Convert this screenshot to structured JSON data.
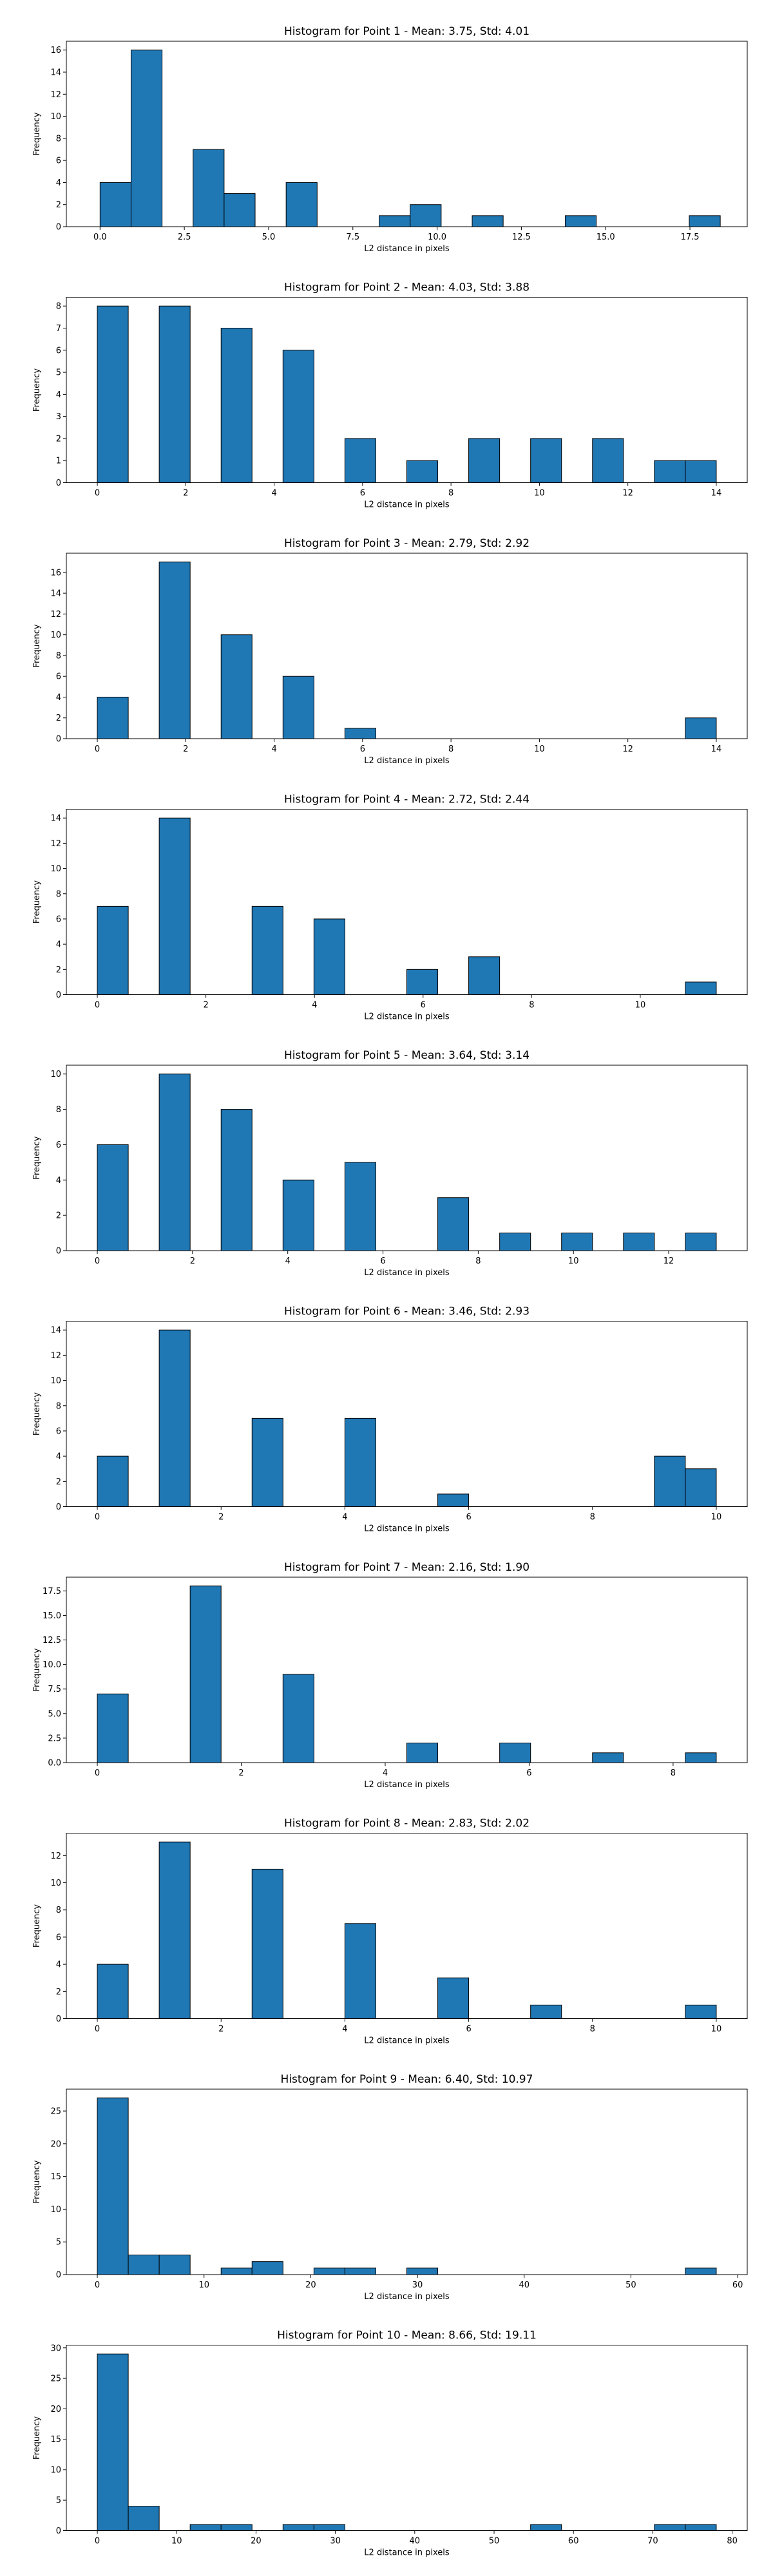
{
  "chart_data": [
    {
      "type": "bar",
      "title": "Histogram for Point 1 - Mean: 3.75, Std: 4.01",
      "xlabel": "L2 distance in pixels",
      "ylabel": "Frequency",
      "bar_color": "#1f77b4",
      "xlim": [
        -1.0,
        19.2
      ],
      "ylim": [
        0,
        16.8
      ],
      "bin_edges": [
        0,
        0.92,
        1.84,
        2.76,
        3.68,
        4.6,
        5.52,
        6.44,
        7.36,
        8.28,
        9.2,
        10.12,
        11.04,
        11.96,
        12.88,
        13.8,
        14.72,
        15.64,
        16.56,
        17.48,
        18.4
      ],
      "values": [
        4,
        16,
        0,
        7,
        3,
        0,
        4,
        0,
        0,
        1,
        2,
        0,
        1,
        0,
        0,
        1,
        0,
        0,
        0,
        1
      ],
      "xticks": [
        0,
        2.5,
        5,
        7.5,
        10,
        12.5,
        15,
        17.5
      ],
      "xtick_labels": [
        "0.0",
        "2.5",
        "5.0",
        "7.5",
        "10.0",
        "12.5",
        "15.0",
        "17.5"
      ],
      "yticks": [
        0,
        2,
        4,
        6,
        8,
        10,
        12,
        14,
        16
      ],
      "ytick_labels": [
        "0",
        "2",
        "4",
        "6",
        "8",
        "10",
        "12",
        "14",
        "16"
      ]
    },
    {
      "type": "bar",
      "title": "Histogram for Point 2 - Mean: 4.03, Std: 3.88",
      "xlabel": "L2 distance in pixels",
      "ylabel": "Frequency",
      "bar_color": "#1f77b4",
      "xlim": [
        -0.7,
        14.7
      ],
      "ylim": [
        0,
        8.4
      ],
      "bin_edges": [
        0,
        0.7,
        1.4,
        2.1,
        2.8,
        3.5,
        4.2,
        4.9,
        5.6,
        6.3,
        7.0,
        7.7,
        8.4,
        9.1,
        9.8,
        10.5,
        11.2,
        11.9,
        12.6,
        13.3,
        14.0
      ],
      "values": [
        8,
        0,
        8,
        0,
        7,
        0,
        6,
        0,
        2,
        0,
        1,
        0,
        2,
        0,
        2,
        0,
        2,
        0,
        1,
        1
      ],
      "xticks": [
        0,
        2,
        4,
        6,
        8,
        10,
        12,
        14
      ],
      "xtick_labels": [
        "0",
        "2",
        "4",
        "6",
        "8",
        "10",
        "12",
        "14"
      ],
      "yticks": [
        0,
        1,
        2,
        3,
        4,
        5,
        6,
        7,
        8
      ],
      "ytick_labels": [
        "0",
        "1",
        "2",
        "3",
        "4",
        "5",
        "6",
        "7",
        "8"
      ]
    },
    {
      "type": "bar",
      "title": "Histogram for Point 3 - Mean: 2.79, Std: 2.92",
      "xlabel": "L2 distance in pixels",
      "ylabel": "Frequency",
      "bar_color": "#1f77b4",
      "xlim": [
        -0.7,
        14.7
      ],
      "ylim": [
        0,
        17.85
      ],
      "bin_edges": [
        0,
        0.7,
        1.4,
        2.1,
        2.8,
        3.5,
        4.2,
        4.9,
        5.6,
        6.3,
        7.0,
        7.7,
        8.4,
        9.1,
        9.8,
        10.5,
        11.2,
        11.9,
        12.6,
        13.3,
        14.0
      ],
      "values": [
        4,
        0,
        17,
        0,
        10,
        0,
        6,
        0,
        1,
        0,
        0,
        0,
        0,
        0,
        0,
        0,
        0,
        0,
        0,
        2
      ],
      "xticks": [
        0,
        2,
        4,
        6,
        8,
        10,
        12,
        14
      ],
      "xtick_labels": [
        "0",
        "2",
        "4",
        "6",
        "8",
        "10",
        "12",
        "14"
      ],
      "yticks": [
        0,
        2,
        4,
        6,
        8,
        10,
        12,
        14,
        16
      ],
      "ytick_labels": [
        "0",
        "2",
        "4",
        "6",
        "8",
        "10",
        "12",
        "14",
        "16"
      ]
    },
    {
      "type": "bar",
      "title": "Histogram for Point 4 - Mean: 2.72, Std: 2.44",
      "xlabel": "L2 distance in pixels",
      "ylabel": "Frequency",
      "bar_color": "#1f77b4",
      "xlim": [
        -0.57,
        11.97
      ],
      "ylim": [
        0,
        14.7
      ],
      "bin_edges": [
        0,
        0.57,
        1.14,
        1.71,
        2.28,
        2.85,
        3.42,
        3.99,
        4.56,
        5.13,
        5.7,
        6.27,
        6.84,
        7.41,
        7.98,
        8.55,
        9.12,
        9.69,
        10.26,
        10.83,
        11.4
      ],
      "values": [
        7,
        0,
        14,
        0,
        0,
        7,
        0,
        6,
        0,
        0,
        2,
        0,
        3,
        0,
        0,
        0,
        0,
        0,
        0,
        1
      ],
      "xticks": [
        0,
        2,
        4,
        6,
        8,
        10
      ],
      "xtick_labels": [
        "0",
        "2",
        "4",
        "6",
        "8",
        "10"
      ],
      "yticks": [
        0,
        2,
        4,
        6,
        8,
        10,
        12,
        14
      ],
      "ytick_labels": [
        "0",
        "2",
        "4",
        "6",
        "8",
        "10",
        "12",
        "14"
      ]
    },
    {
      "type": "bar",
      "title": "Histogram for Point 5 - Mean: 3.64, Std: 3.14",
      "xlabel": "L2 distance in pixels",
      "ylabel": "Frequency",
      "bar_color": "#1f77b4",
      "xlim": [
        -0.65,
        13.65
      ],
      "ylim": [
        0,
        10.5
      ],
      "bin_edges": [
        0,
        0.65,
        1.3,
        1.95,
        2.6,
        3.25,
        3.9,
        4.55,
        5.2,
        5.85,
        6.5,
        7.15,
        7.8,
        8.45,
        9.1,
        9.75,
        10.4,
        11.05,
        11.7,
        12.35,
        13.0
      ],
      "values": [
        6,
        0,
        10,
        0,
        8,
        0,
        4,
        0,
        5,
        0,
        0,
        3,
        0,
        1,
        0,
        1,
        0,
        1,
        0,
        1
      ],
      "xticks": [
        0,
        2,
        4,
        6,
        8,
        10,
        12
      ],
      "xtick_labels": [
        "0",
        "2",
        "4",
        "6",
        "8",
        "10",
        "12"
      ],
      "yticks": [
        0,
        2,
        4,
        6,
        8,
        10
      ],
      "ytick_labels": [
        "0",
        "2",
        "4",
        "6",
        "8",
        "10"
      ]
    },
    {
      "type": "bar",
      "title": "Histogram for Point 6 - Mean: 3.46, Std: 2.93",
      "xlabel": "L2 distance in pixels",
      "ylabel": "Frequency",
      "bar_color": "#1f77b4",
      "xlim": [
        -0.5,
        10.5
      ],
      "ylim": [
        0,
        14.7
      ],
      "bin_edges": [
        0,
        0.5,
        1.0,
        1.5,
        2.0,
        2.5,
        3.0,
        3.5,
        4.0,
        4.5,
        5.0,
        5.5,
        6.0,
        6.5,
        7.0,
        7.5,
        8.0,
        8.5,
        9.0,
        9.5,
        10.0
      ],
      "values": [
        4,
        0,
        14,
        0,
        0,
        7,
        0,
        0,
        7,
        0,
        0,
        1,
        0,
        0,
        0,
        0,
        0,
        0,
        4,
        3
      ],
      "xticks": [
        0,
        2,
        4,
        6,
        8,
        10
      ],
      "xtick_labels": [
        "0",
        "2",
        "4",
        "6",
        "8",
        "10"
      ],
      "yticks": [
        0,
        2,
        4,
        6,
        8,
        10,
        12,
        14
      ],
      "ytick_labels": [
        "0",
        "2",
        "4",
        "6",
        "8",
        "10",
        "12",
        "14"
      ]
    },
    {
      "type": "bar",
      "title": "Histogram for Point 7 - Mean: 2.16, Std: 1.90",
      "xlabel": "L2 distance in pixels",
      "ylabel": "Frequency",
      "bar_color": "#1f77b4",
      "xlim": [
        -0.43,
        9.03
      ],
      "ylim": [
        0,
        18.9
      ],
      "bin_edges": [
        0,
        0.43,
        0.86,
        1.29,
        1.72,
        2.15,
        2.58,
        3.01,
        3.44,
        3.87,
        4.3,
        4.73,
        5.16,
        5.59,
        6.02,
        6.45,
        6.88,
        7.31,
        7.74,
        8.17,
        8.6
      ],
      "values": [
        7,
        0,
        0,
        18,
        0,
        0,
        9,
        0,
        0,
        0,
        2,
        0,
        0,
        2,
        0,
        0,
        1,
        0,
        0,
        1
      ],
      "xticks": [
        0,
        2,
        4,
        6,
        8
      ],
      "xtick_labels": [
        "0",
        "2",
        "4",
        "6",
        "8"
      ],
      "yticks": [
        0,
        2.5,
        5,
        7.5,
        10,
        12.5,
        15,
        17.5
      ],
      "ytick_labels": [
        "0.0",
        "2.5",
        "5.0",
        "7.5",
        "10.0",
        "12.5",
        "15.0",
        "17.5"
      ]
    },
    {
      "type": "bar",
      "title": "Histogram for Point 8 - Mean: 2.83, Std: 2.02",
      "xlabel": "L2 distance in pixels",
      "ylabel": "Frequency",
      "bar_color": "#1f77b4",
      "xlim": [
        -0.5,
        10.5
      ],
      "ylim": [
        0,
        13.65
      ],
      "bin_edges": [
        0,
        0.5,
        1.0,
        1.5,
        2.0,
        2.5,
        3.0,
        3.5,
        4.0,
        4.5,
        5.0,
        5.5,
        6.0,
        6.5,
        7.0,
        7.5,
        8.0,
        8.5,
        9.0,
        9.5,
        10.0
      ],
      "values": [
        4,
        0,
        13,
        0,
        0,
        11,
        0,
        0,
        7,
        0,
        0,
        3,
        0,
        0,
        1,
        0,
        0,
        0,
        0,
        1
      ],
      "xticks": [
        0,
        2,
        4,
        6,
        8,
        10
      ],
      "xtick_labels": [
        "0",
        "2",
        "4",
        "6",
        "8",
        "10"
      ],
      "yticks": [
        0,
        2,
        4,
        6,
        8,
        10,
        12
      ],
      "ytick_labels": [
        "0",
        "2",
        "4",
        "6",
        "8",
        "10",
        "12"
      ]
    },
    {
      "type": "bar",
      "title": "Histogram for Point 9 - Mean: 6.40, Std: 10.97",
      "xlabel": "L2 distance in pixels",
      "ylabel": "Frequency",
      "bar_color": "#1f77b4",
      "xlim": [
        -2.9,
        60.9
      ],
      "ylim": [
        0,
        28.35
      ],
      "bin_edges": [
        0,
        2.9,
        5.8,
        8.7,
        11.6,
        14.5,
        17.4,
        20.3,
        23.2,
        26.1,
        29.0,
        31.9,
        34.8,
        37.7,
        40.6,
        43.5,
        46.4,
        49.3,
        52.2,
        55.1,
        58.0
      ],
      "values": [
        27,
        3,
        3,
        0,
        1,
        2,
        0,
        1,
        1,
        0,
        1,
        0,
        0,
        0,
        0,
        0,
        0,
        0,
        0,
        1
      ],
      "xticks": [
        0,
        10,
        20,
        30,
        40,
        50,
        60
      ],
      "xtick_labels": [
        "0",
        "10",
        "20",
        "30",
        "40",
        "50",
        "60"
      ],
      "yticks": [
        0,
        5,
        10,
        15,
        20,
        25
      ],
      "ytick_labels": [
        "0",
        "5",
        "10",
        "15",
        "20",
        "25"
      ]
    },
    {
      "type": "bar",
      "title": "Histogram for Point 10 - Mean: 8.66, Std: 19.11",
      "xlabel": "L2 distance in pixels",
      "ylabel": "Frequency",
      "bar_color": "#1f77b4",
      "xlim": [
        -3.9,
        81.9
      ],
      "ylim": [
        0,
        30.45
      ],
      "bin_edges": [
        0,
        3.9,
        7.8,
        11.7,
        15.6,
        19.5,
        23.4,
        27.3,
        31.2,
        35.1,
        39.0,
        42.9,
        46.8,
        50.7,
        54.6,
        58.5,
        62.4,
        66.3,
        70.2,
        74.1,
        78.0
      ],
      "values": [
        29,
        4,
        0,
        1,
        1,
        0,
        1,
        1,
        0,
        0,
        0,
        0,
        0,
        0,
        1,
        0,
        0,
        0,
        1,
        1
      ],
      "xticks": [
        0,
        10,
        20,
        30,
        40,
        50,
        60,
        70,
        80
      ],
      "xtick_labels": [
        "0",
        "10",
        "20",
        "30",
        "40",
        "50",
        "60",
        "70",
        "80"
      ],
      "yticks": [
        0,
        5,
        10,
        15,
        20,
        25,
        30
      ],
      "ytick_labels": [
        "0",
        "5",
        "10",
        "15",
        "20",
        "25",
        "30"
      ]
    }
  ]
}
